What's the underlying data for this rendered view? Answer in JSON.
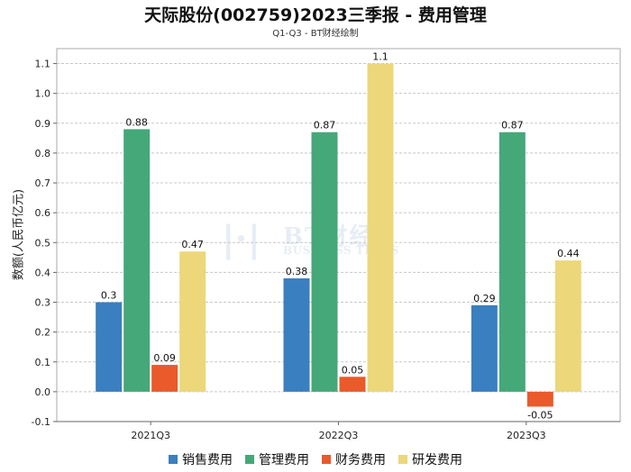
{
  "title": "天际股份(002759)2023三季报 - 费用管理",
  "subtitle": "Q1-Q3 - BT财经绘制",
  "watermark": {
    "mark": "BT财经",
    "text": "BUSINESS TIMES"
  },
  "chart_data": {
    "type": "bar",
    "ylabel": "数额(人民币亿元)",
    "xlabel": "",
    "categories": [
      "2021Q3",
      "2022Q3",
      "2023Q3"
    ],
    "ylim": [
      -0.1,
      1.15
    ],
    "yticks": [
      -0.1,
      0.0,
      0.1,
      0.2,
      0.3,
      0.4,
      0.5,
      0.6,
      0.7,
      0.8,
      0.9,
      1.0,
      1.1
    ],
    "grid": true,
    "legend_position": "bottom",
    "series": [
      {
        "name": "销售费用",
        "color": "#3a7fbf",
        "values": [
          0.3,
          0.38,
          0.29
        ]
      },
      {
        "name": "管理费用",
        "color": "#45a878",
        "values": [
          0.88,
          0.87,
          0.87
        ]
      },
      {
        "name": "财务费用",
        "color": "#ea5a2a",
        "values": [
          0.09,
          0.05,
          -0.05
        ]
      },
      {
        "name": "研发费用",
        "color": "#ecd77a",
        "values": [
          0.47,
          1.1,
          0.44
        ]
      }
    ]
  }
}
